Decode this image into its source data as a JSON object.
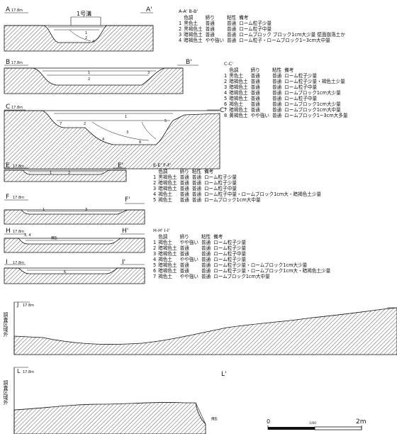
{
  "sections": [
    {
      "id": "A",
      "left": "A",
      "right": "A'",
      "elev": "17.8m",
      "pit": "1号溝"
    },
    {
      "id": "B",
      "left": "B",
      "right": "B'",
      "elev": "17.8m"
    },
    {
      "id": "C",
      "left": "C",
      "right": "C'",
      "elev": "17.8m"
    },
    {
      "id": "E",
      "left": "E",
      "right": "E'",
      "elev": "17.8m"
    },
    {
      "id": "F",
      "left": "F",
      "right": "F'",
      "elev": "17.8m"
    },
    {
      "id": "H",
      "left": "H",
      "right": "H'",
      "elev": "17.8m",
      "note": "攪乱"
    },
    {
      "id": "I",
      "left": "I",
      "right": "I'",
      "elev": "17.8m"
    },
    {
      "id": "J",
      "left": "J",
      "right": "J'",
      "elev": "17.8m",
      "side": "調査区域外"
    },
    {
      "id": "L",
      "left": "L",
      "right": "L'",
      "elev": "17.8m",
      "side": "調査区域外",
      "note": "攪乱"
    }
  ],
  "legends": [
    {
      "title": "A-A' B-B'",
      "header": [
        "色調",
        "締り",
        "粘性",
        "備考"
      ],
      "rows": [
        [
          "1",
          "黒色土",
          "普通",
          "普通",
          "ローム粒子少量"
        ],
        [
          "2",
          "黒褐色土",
          "普通",
          "普通",
          "ローム粒子中量"
        ],
        [
          "3",
          "暗褐色土",
          "普通",
          "普通",
          "ロームブロック ブロック1cm大少量  壁面崩落土か"
        ],
        [
          "4",
          "暗褐色土",
          "やや強い",
          "普通",
          "ローム粒子・ロームブロック1~3cm大中量"
        ]
      ]
    },
    {
      "title": "C-C'",
      "header": [
        "色調",
        "締り",
        "粘性",
        "備考"
      ],
      "rows": [
        [
          "1",
          "黒色土",
          "普通",
          "普通",
          "ローム粒子少量"
        ],
        [
          "2",
          "暗褐色土",
          "普通",
          "普通",
          "ローム粒子少量・褐色土少量"
        ],
        [
          "3",
          "暗褐色土",
          "普通",
          "普通",
          "ローム粒子中量"
        ],
        [
          "4",
          "暗褐色土",
          "普通",
          "普通",
          "ロームブロック1cm大少量"
        ],
        [
          "5",
          "暗褐色土",
          "普通",
          "普通",
          "ローム粒子中量"
        ],
        [
          "6",
          "褐色土",
          "普通",
          "普通",
          "ロームブロック1cm大少量"
        ],
        [
          "7",
          "暗褐色土",
          "普通",
          "普通",
          "ロームブロック1cm大中量"
        ],
        [
          "8",
          "黄褐色土",
          "やや強い",
          "普通",
          "ロームブロック1~3cm大多量"
        ]
      ]
    },
    {
      "title": "E-E' F-F'",
      "header": [
        "色調",
        "締り",
        "粘性",
        "備考"
      ],
      "rows": [
        [
          "1",
          "黒褐色土",
          "普通",
          "普通",
          "ローム粒子少量"
        ],
        [
          "2",
          "暗褐色土",
          "普通",
          "普通",
          "ローム粒子少量"
        ],
        [
          "3",
          "暗褐色土",
          "普通",
          "普通",
          "ローム粒子中量"
        ],
        [
          "4",
          "褐色土",
          "普通",
          "普通",
          "ローム粒子中量・ロームブロック1cm大・暗褐色土少量"
        ],
        [
          "5",
          "褐色土",
          "普通",
          "普通",
          "ロームブロック1cm大中量"
        ]
      ]
    },
    {
      "title": "H-H' I-I'",
      "header": [
        "色調",
        "締り",
        "粘性",
        "備考"
      ],
      "rows": [
        [
          "1",
          "褐色土",
          "やや強い",
          "普通",
          "ローム粒子少量"
        ],
        [
          "2",
          "暗褐色土",
          "普通",
          "普通",
          "ローム粒子少量"
        ],
        [
          "3",
          "暗褐色土",
          "普通",
          "普通",
          "ローム粒子中量"
        ],
        [
          "4",
          "褐色土",
          "やや強い",
          "普通",
          "ローム粒子少量"
        ],
        [
          "5",
          "暗褐色土",
          "普通",
          "普通",
          "ローム粒子少量・ロームブロック1cm大少量"
        ],
        [
          "6",
          "暗褐色土",
          "普通",
          "普通",
          "ローム粒子少量・ロームブロック1cm大・暗褐色土少量"
        ],
        [
          "7",
          "褐色土",
          "やや強い",
          "普通",
          "ロームブロック1cm大中量"
        ]
      ]
    }
  ],
  "scale": {
    "zero": "0",
    "mid": "1/60",
    "end": "2m"
  }
}
